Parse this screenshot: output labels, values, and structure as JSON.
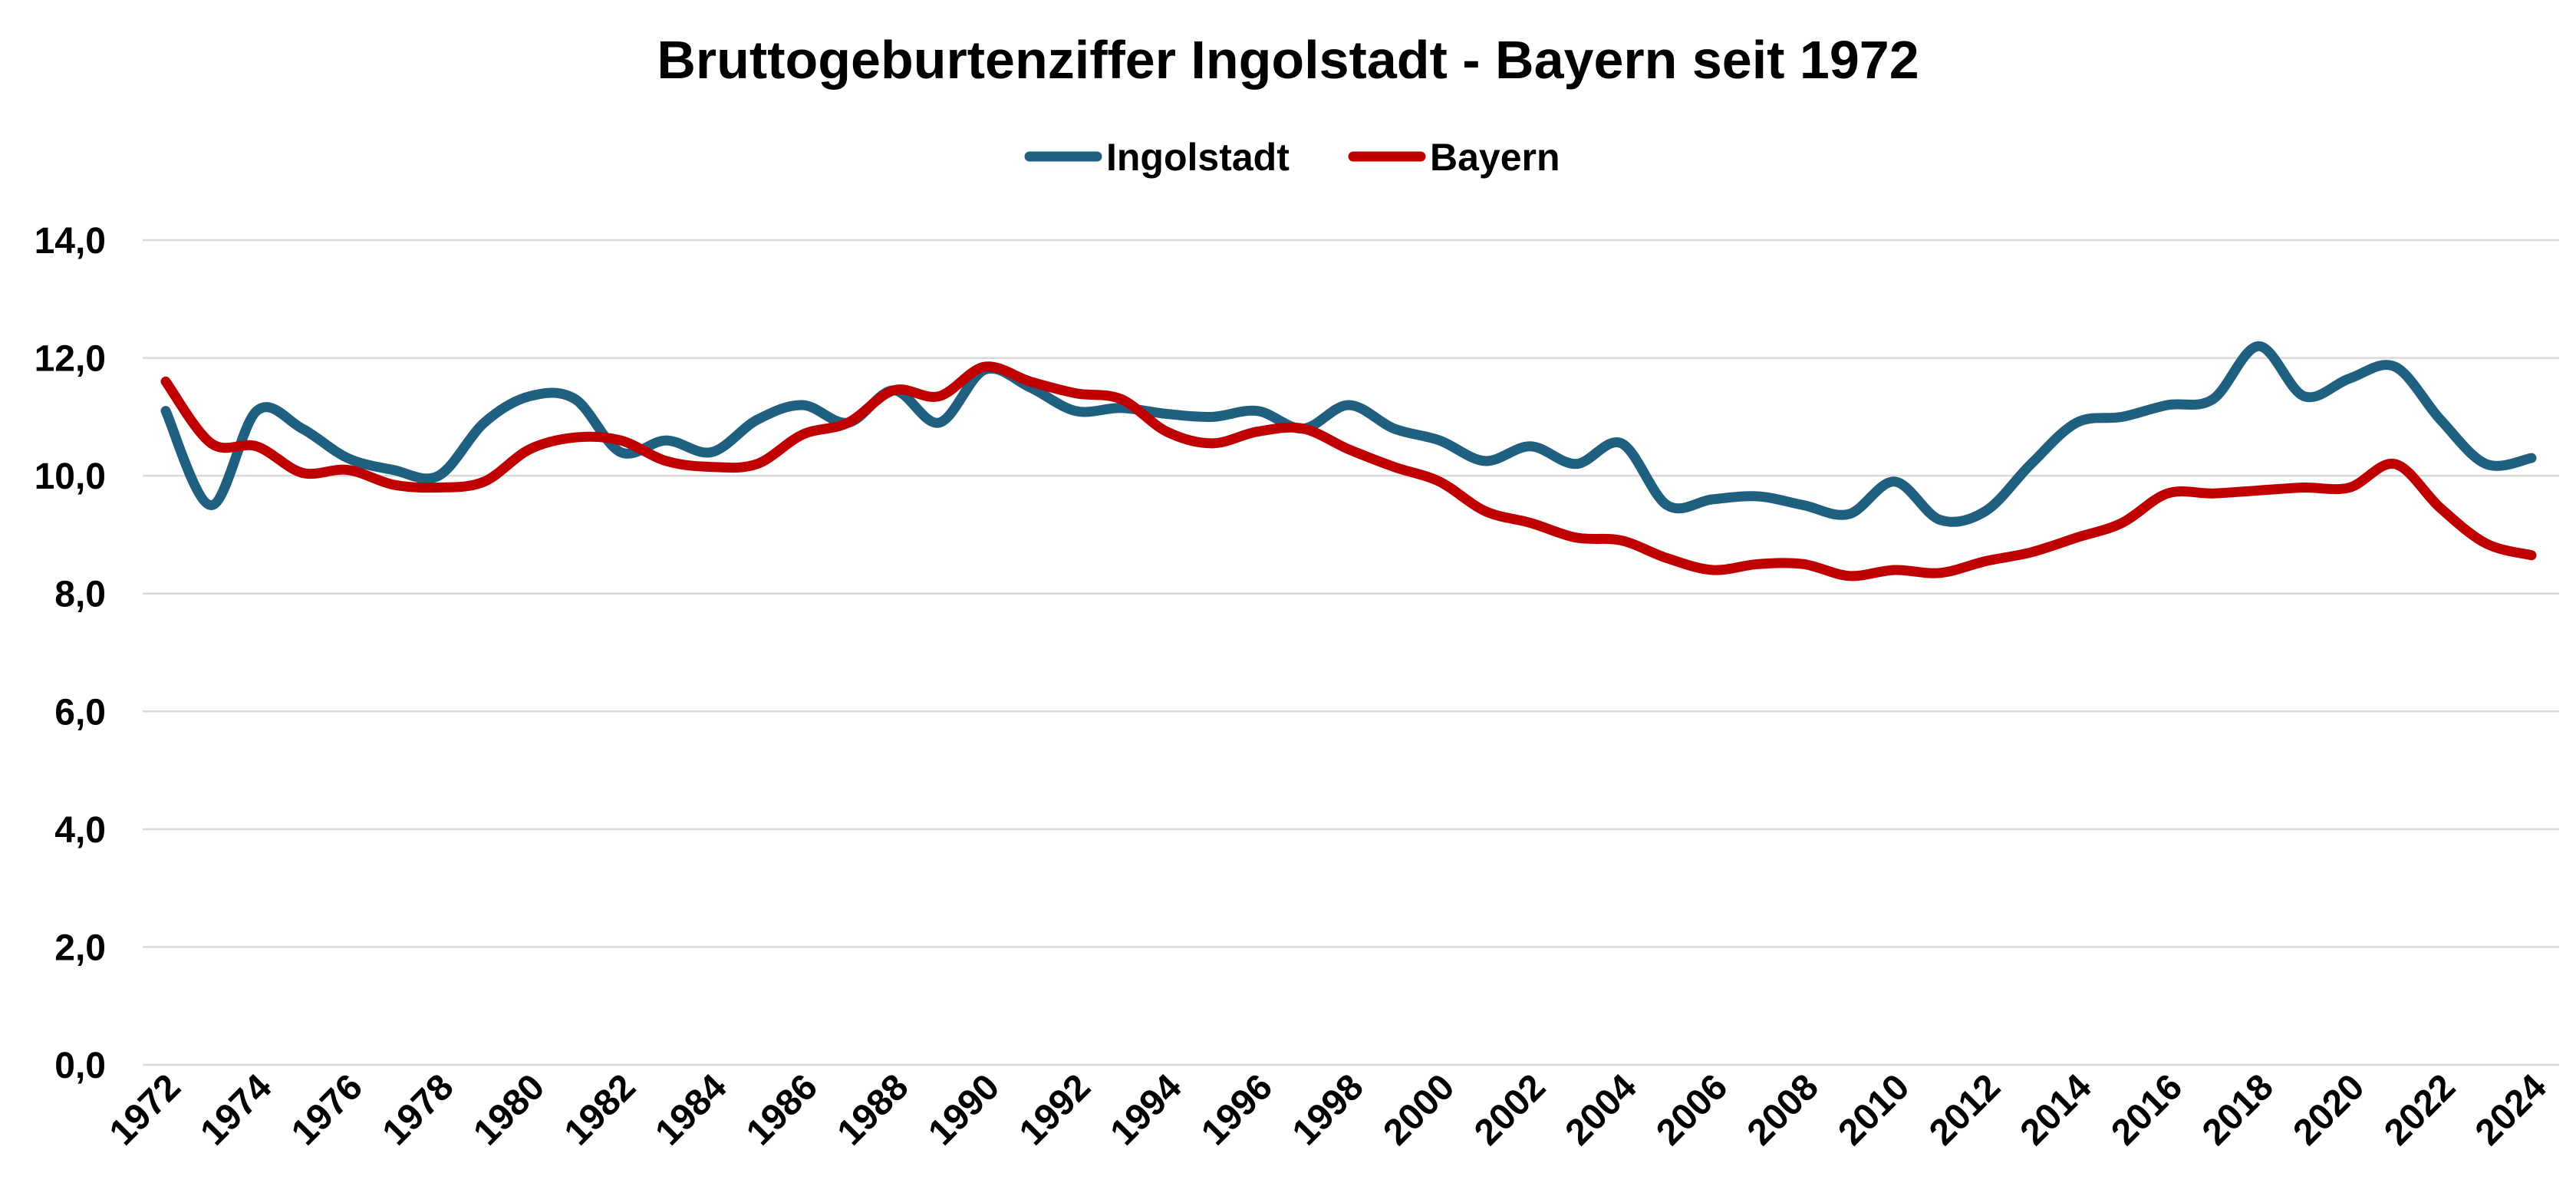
{
  "chart_data": {
    "type": "line",
    "title": "Bruttogeburtenziffer Ingolstadt - Bayern seit 1972",
    "xlabel": "",
    "ylabel": "",
    "ylim": [
      0,
      14
    ],
    "y_ticks": [
      0,
      2,
      4,
      6,
      8,
      10,
      12,
      14
    ],
    "y_tick_labels": [
      "0,0",
      "2,0",
      "4,0",
      "6,0",
      "8,0",
      "10,0",
      "12,0",
      "14,0"
    ],
    "x_tick_labels": [
      "1972",
      "1974",
      "1976",
      "1978",
      "1980",
      "1982",
      "1984",
      "1986",
      "1988",
      "1990",
      "1992",
      "1994",
      "1996",
      "1998",
      "2000",
      "2002",
      "2004",
      "2006",
      "2008",
      "2010",
      "2012",
      "2014",
      "2016",
      "2018",
      "2020",
      "2022",
      "2024"
    ],
    "x": [
      1972,
      1973,
      1974,
      1975,
      1976,
      1977,
      1978,
      1979,
      1980,
      1981,
      1982,
      1983,
      1984,
      1985,
      1986,
      1987,
      1988,
      1989,
      1990,
      1991,
      1992,
      1993,
      1994,
      1995,
      1996,
      1997,
      1998,
      1999,
      2000,
      2001,
      2002,
      2003,
      2004,
      2005,
      2006,
      2007,
      2008,
      2009,
      2010,
      2011,
      2012,
      2013,
      2014,
      2015,
      2016,
      2017,
      2018,
      2019,
      2020,
      2021,
      2022,
      2023,
      2024
    ],
    "legend_position": "top-center",
    "grid": true,
    "smooth": true,
    "series": [
      {
        "name": "Ingolstadt",
        "color": "#1f5f7f",
        "values": [
          11.1,
          9.5,
          11.1,
          10.8,
          10.3,
          10.1,
          10.0,
          10.9,
          11.35,
          11.3,
          10.4,
          10.6,
          10.4,
          10.95,
          11.2,
          10.9,
          11.45,
          10.9,
          11.8,
          11.5,
          11.1,
          11.15,
          11.05,
          11.0,
          11.1,
          10.8,
          11.2,
          10.8,
          10.6,
          10.25,
          10.5,
          10.2,
          10.55,
          9.5,
          9.6,
          9.65,
          9.5,
          9.35,
          9.9,
          9.25,
          9.4,
          10.2,
          10.9,
          11.0,
          11.2,
          11.3,
          12.2,
          11.35,
          11.65,
          11.85,
          10.95,
          10.2,
          10.3
        ]
      },
      {
        "name": "Bayern",
        "color": "#c00000",
        "values": [
          11.6,
          10.55,
          10.5,
          10.05,
          10.1,
          9.85,
          9.8,
          9.9,
          10.45,
          10.65,
          10.6,
          10.25,
          10.15,
          10.2,
          10.7,
          10.9,
          11.45,
          11.35,
          11.85,
          11.6,
          11.4,
          11.3,
          10.75,
          10.55,
          10.75,
          10.8,
          10.45,
          10.15,
          9.9,
          9.4,
          9.2,
          8.95,
          8.9,
          8.6,
          8.4,
          8.5,
          8.5,
          8.3,
          8.4,
          8.35,
          8.55,
          8.7,
          8.95,
          9.2,
          9.7,
          9.7,
          9.75,
          9.8,
          9.8,
          10.2,
          9.45,
          8.85,
          8.65
        ]
      }
    ]
  }
}
